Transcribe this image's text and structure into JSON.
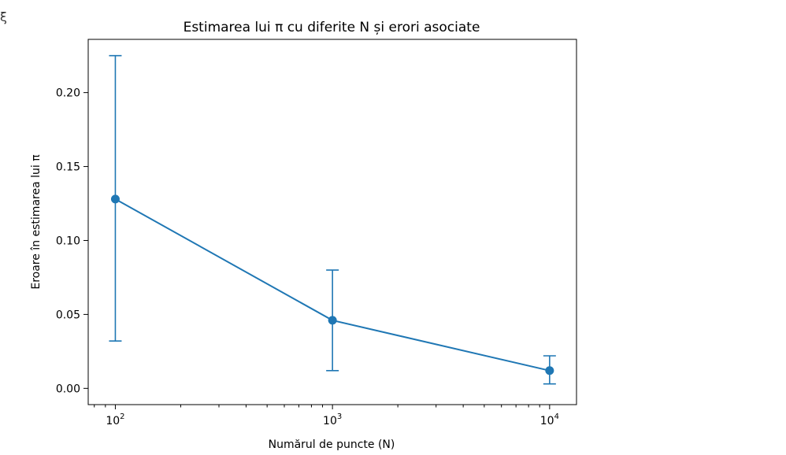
{
  "ui": {
    "corner_glyph": "ξ"
  },
  "chart_data": {
    "type": "line",
    "title": "Estimarea lui π cu diferite N și erori asociate",
    "xlabel": "Numărul de puncte (N)",
    "ylabel": "Eroare în estimarea lui π",
    "xscale": "log",
    "xlim": [
      75,
      13300
    ],
    "ylim": [
      -0.011,
      0.236
    ],
    "x_ticks": [
      {
        "value": 100,
        "base": "10",
        "exp": "2"
      },
      {
        "value": 1000,
        "base": "10",
        "exp": "3"
      },
      {
        "value": 10000,
        "base": "10",
        "exp": "4"
      }
    ],
    "y_ticks": [
      "0.00",
      "0.05",
      "0.10",
      "0.15",
      "0.20"
    ],
    "series": [
      {
        "x": [
          100,
          1000,
          10000
        ],
        "y": [
          0.128,
          0.046,
          0.012
        ],
        "yerr_low": [
          0.032,
          0.012,
          0.003
        ],
        "yerr_high": [
          0.225,
          0.08,
          0.022
        ],
        "color": "#1f77b4"
      }
    ],
    "grid": false,
    "legend": "none"
  }
}
